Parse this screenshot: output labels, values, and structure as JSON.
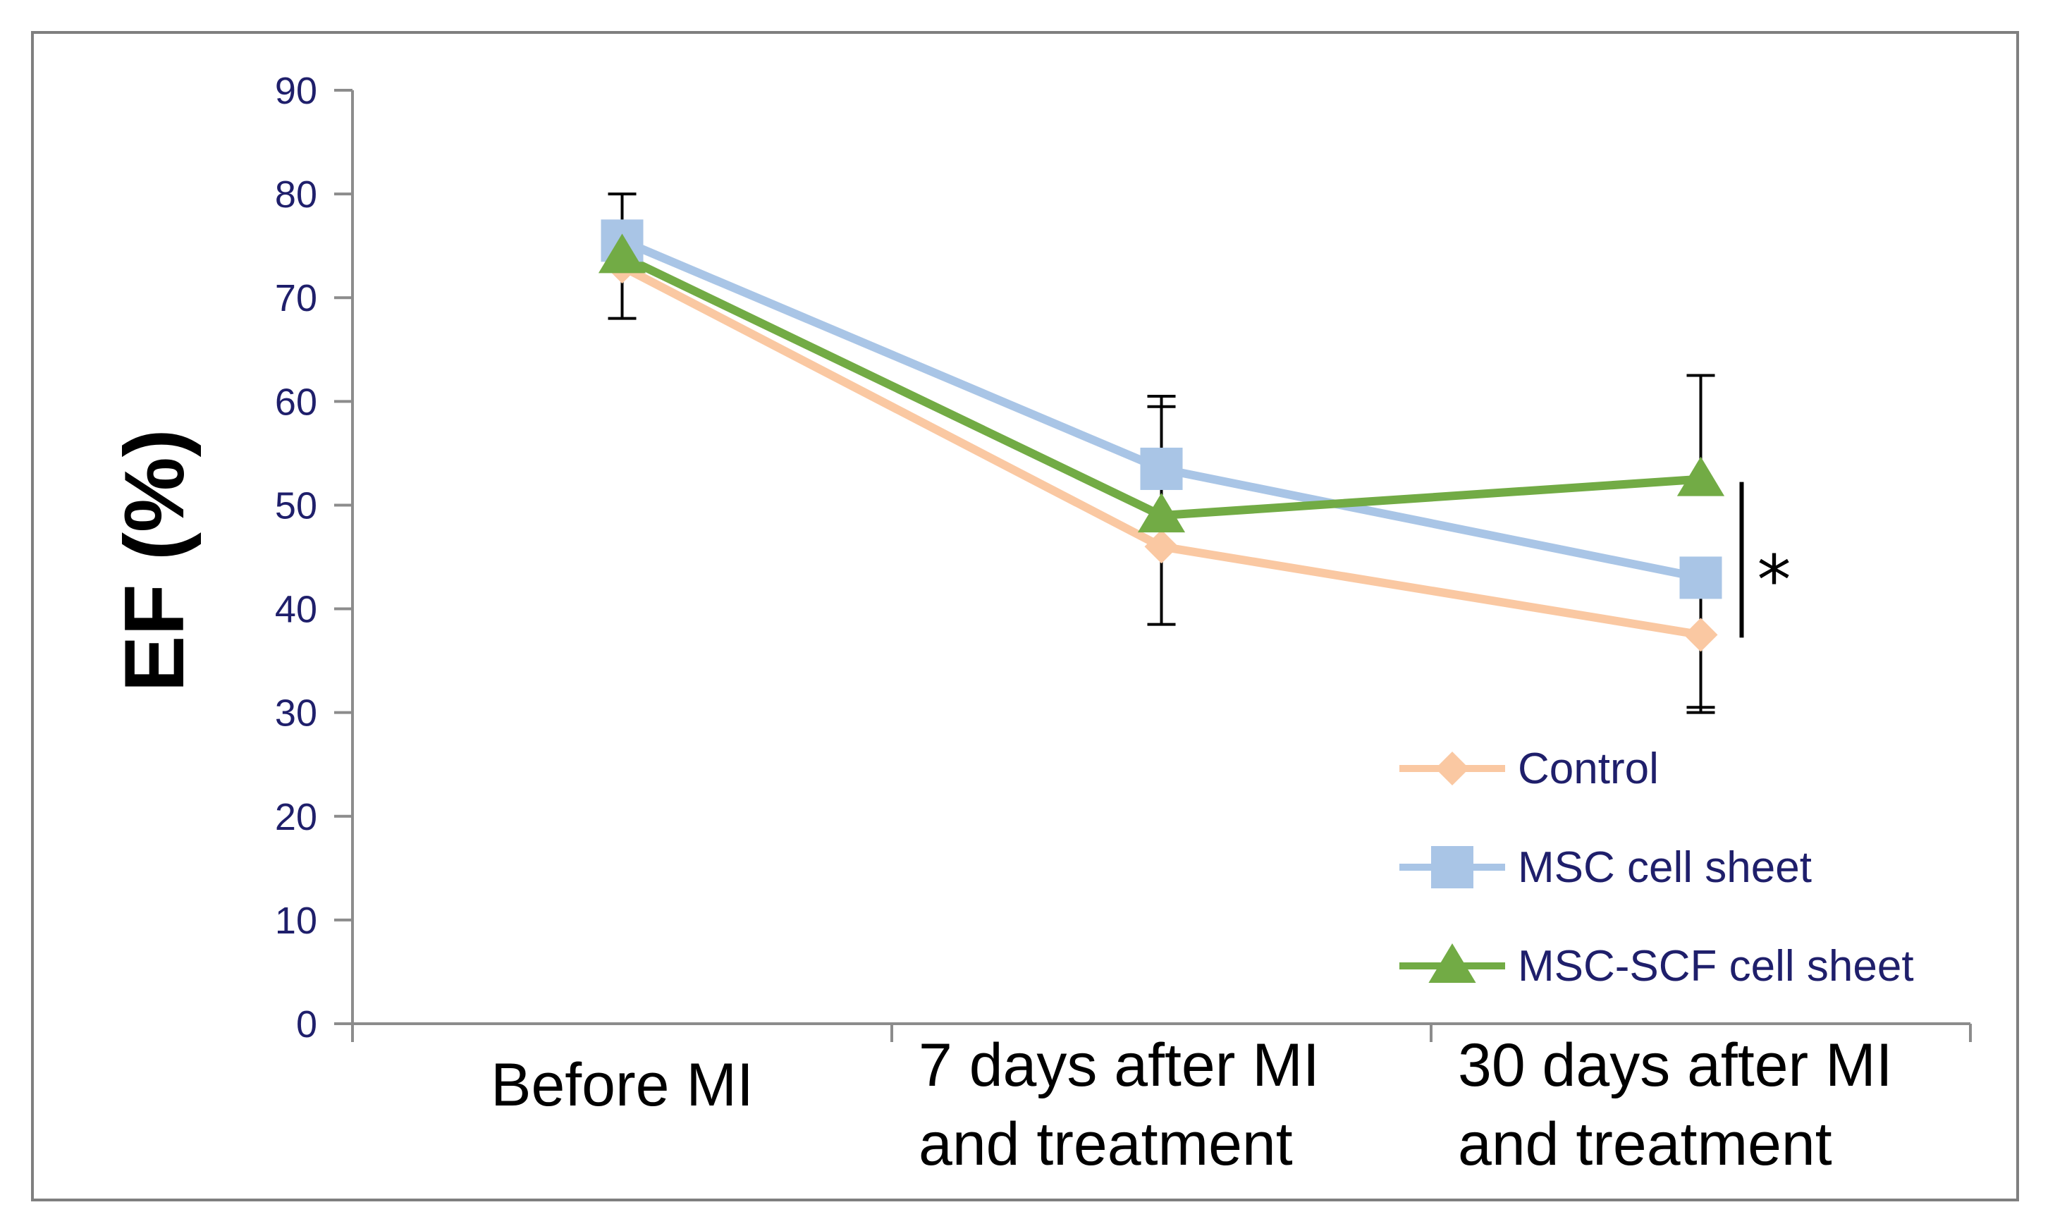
{
  "chart_data": {
    "type": "line",
    "title": "",
    "xlabel": "",
    "ylabel": "EF (%)",
    "ylim": [
      0,
      90
    ],
    "yticks": [
      0,
      10,
      20,
      30,
      40,
      50,
      60,
      70,
      80,
      90
    ],
    "categories": [
      [
        "Before MI"
      ],
      [
        "7 days after MI",
        "and treatment"
      ],
      [
        "30 days after MI",
        "and treatment"
      ]
    ],
    "series": [
      {
        "name": "Control",
        "color": "#fac8a2",
        "marker": "diamond",
        "values": [
          73,
          46,
          37.5
        ],
        "err_low": [
          null,
          38.5,
          30.5
        ],
        "err_high": [
          null,
          null,
          null
        ]
      },
      {
        "name": "MSC cell sheet",
        "color": "#a9c5e6",
        "marker": "square",
        "values": [
          75.5,
          53.5,
          43
        ],
        "err_low": [
          68,
          null,
          30
        ],
        "err_high": [
          80,
          60.5,
          null
        ]
      },
      {
        "name": "MSC-SCF cell sheet",
        "color": "#72ab45",
        "marker": "triangle",
        "values": [
          74,
          49,
          52.5
        ],
        "err_low": [
          null,
          null,
          null
        ],
        "err_high": [
          null,
          59.5,
          62.5
        ]
      }
    ],
    "legend_position": "bottom-right",
    "annotations": [
      {
        "text": "*",
        "range": [
          37.5,
          52.5
        ],
        "category_index": 2
      }
    ]
  }
}
